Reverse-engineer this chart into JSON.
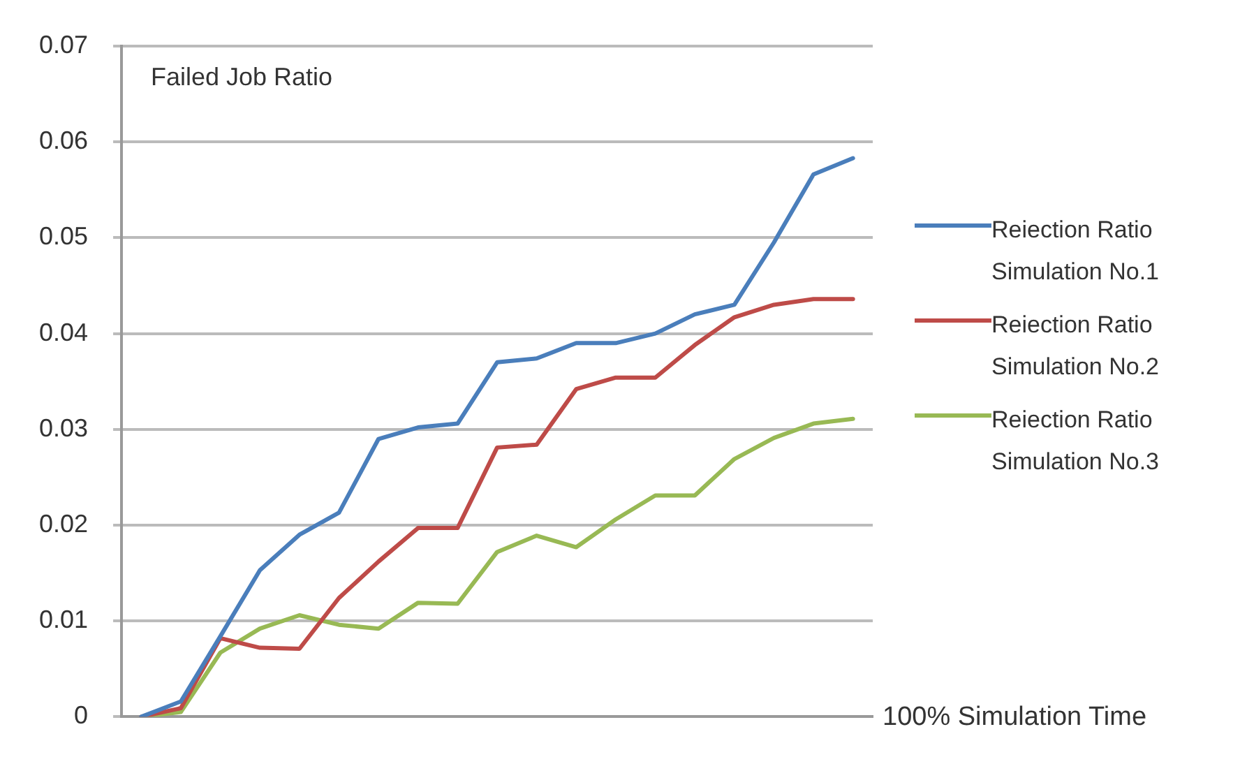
{
  "chart_data": {
    "type": "line",
    "ylabel": "Failed Job Ratio",
    "xlabel": "100% Simulation Time",
    "categories": [
      null,
      null,
      null,
      null,
      null,
      null,
      null,
      null,
      null,
      null,
      null,
      null,
      null,
      null,
      null,
      null,
      null,
      null,
      null
    ],
    "series": [
      {
        "name": "Reiection Ratio Simulation No.1",
        "color": "#4a7ebb",
        "values": [
          0,
          0.0016,
          0.0084,
          0.0153,
          0.019,
          0.0213,
          0.029,
          0.0302,
          0.0306,
          0.037,
          0.0374,
          0.039,
          0.039,
          0.04,
          0.042,
          0.043,
          0.0495,
          0.0566,
          0.0583
        ]
      },
      {
        "name": "Reiection Ratio Simulation No.2",
        "color": "#be4b48",
        "values": [
          0,
          0.0009,
          0.0082,
          0.0072,
          0.0071,
          0.0124,
          0.0162,
          0.0197,
          0.0197,
          0.0281,
          0.0284,
          0.0342,
          0.0354,
          0.0354,
          0.0388,
          0.0417,
          0.043,
          0.0436,
          0.0436
        ]
      },
      {
        "name": "Reiection Ratio Simulation No.3",
        "color": "#98b954",
        "values": [
          0,
          0.0005,
          0.0067,
          0.0092,
          0.0106,
          0.0096,
          0.0092,
          0.0119,
          0.0118,
          0.0172,
          0.0189,
          0.0177,
          0.0206,
          0.0231,
          0.0231,
          0.0269,
          0.0291,
          0.0306,
          0.0311
        ]
      }
    ],
    "ylim": [
      0,
      0.07
    ],
    "yticks": [
      0,
      0.01,
      0.02,
      0.03,
      0.04,
      0.05,
      0.06,
      0.07
    ],
    "grid": "y",
    "legend": "right",
    "tick_labels": "y",
    "marker": "none",
    "line_style": "solid"
  }
}
